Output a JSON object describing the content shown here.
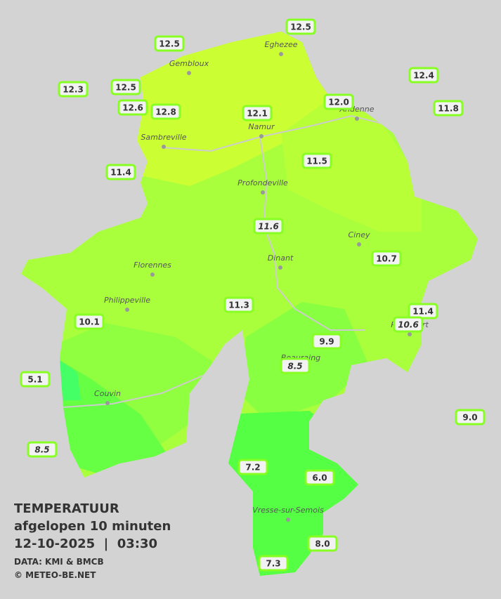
{
  "legend": {
    "title": "TEMPERATUUR",
    "period": "afgelopen 10 minuten",
    "datetime": "12-10-2025  |  03:30",
    "source": "DATA: KMI & BMCB",
    "copyright": "© METEO-BE.NET"
  },
  "towns": [
    "Eghezee",
    "Gembloux",
    "Andenne",
    "Namur",
    "Sambreville",
    "Profondeville",
    "Ciney",
    "Dinant",
    "Florennes",
    "Philippeville",
    "Rochefort",
    "Beauraing",
    "Couvin",
    "Vresse-sur-Semois"
  ],
  "stations": [
    {
      "value": "12.5"
    },
    {
      "value": "12.5"
    },
    {
      "value": "12.3"
    },
    {
      "value": "12.5"
    },
    {
      "value": "12.6"
    },
    {
      "value": "12.8"
    },
    {
      "value": "12.1"
    },
    {
      "value": "12.0"
    },
    {
      "value": "12.4"
    },
    {
      "value": "11.8"
    },
    {
      "value": "11.4"
    },
    {
      "value": "11.5"
    },
    {
      "value": "11.6",
      "italic": true
    },
    {
      "value": "10.7"
    },
    {
      "value": "11.3"
    },
    {
      "value": "11.4"
    },
    {
      "value": "10.6",
      "italic": true
    },
    {
      "value": "10.1"
    },
    {
      "value": "9.9"
    },
    {
      "value": "8.5",
      "italic": true
    },
    {
      "value": "5.1"
    },
    {
      "value": "9.0"
    },
    {
      "value": "8.5",
      "italic": true
    },
    {
      "value": "7.2"
    },
    {
      "value": "6.0"
    },
    {
      "value": "8.0"
    },
    {
      "value": "7.3"
    }
  ]
}
